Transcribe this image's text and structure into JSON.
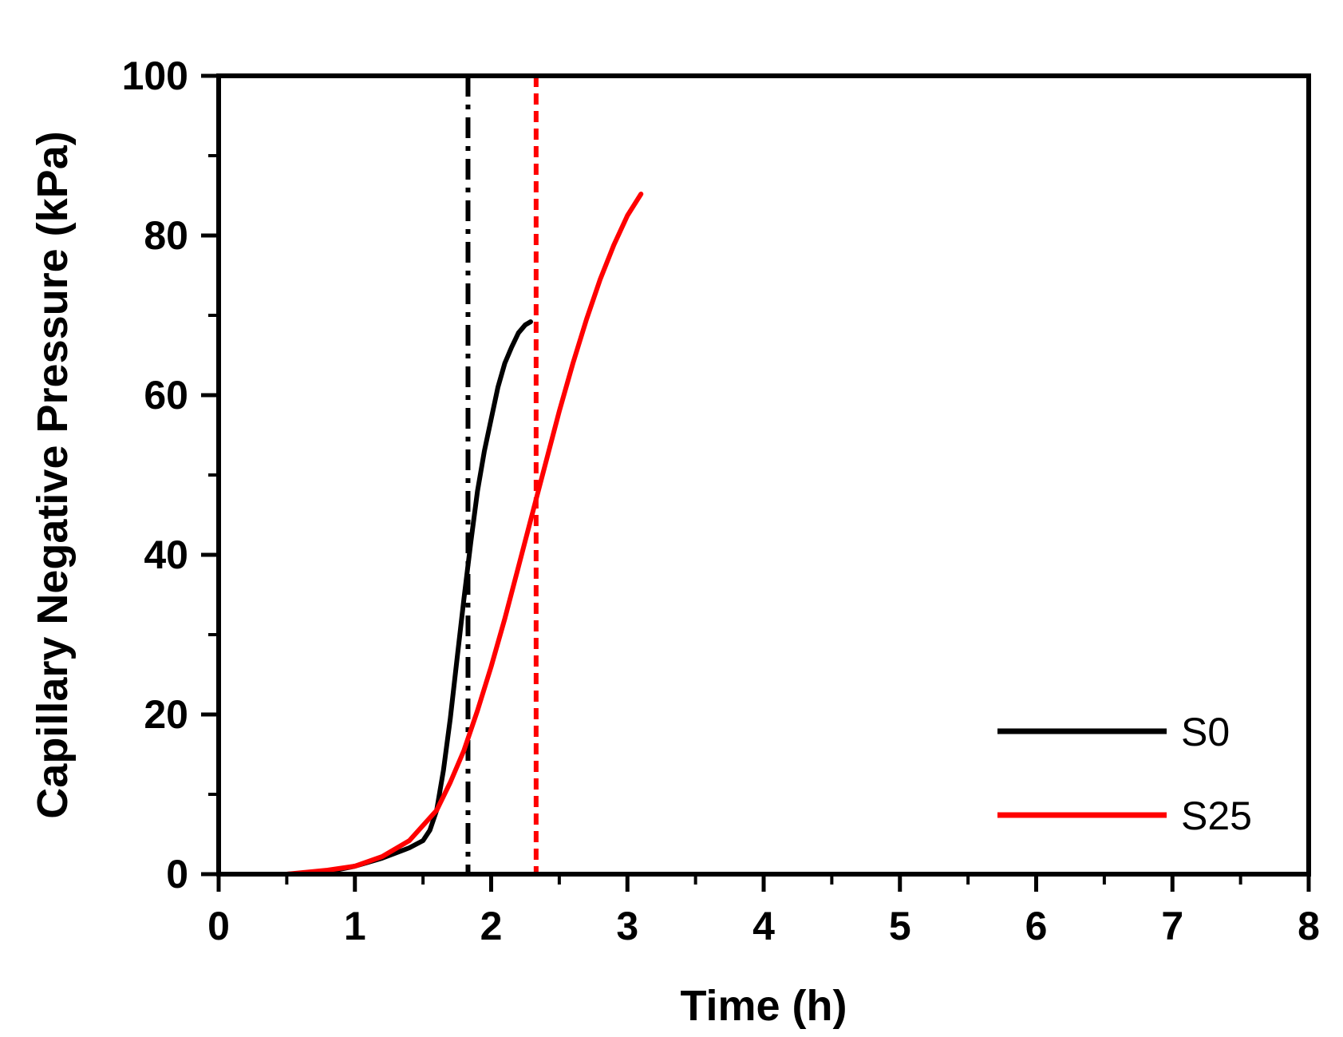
{
  "chart_data": {
    "type": "line",
    "title": "",
    "xlabel": "Time (h)",
    "ylabel": "Capillary Negative Pressure (kPa)",
    "xlim": [
      0,
      8
    ],
    "ylim": [
      0,
      100
    ],
    "x_ticks": [
      0,
      1,
      2,
      3,
      4,
      5,
      6,
      7,
      8
    ],
    "y_ticks": [
      0,
      20,
      40,
      60,
      80,
      100
    ],
    "x_tick_labels": [
      "0",
      "1",
      "2",
      "3",
      "4",
      "5",
      "6",
      "7",
      "8"
    ],
    "y_tick_labels": [
      "0",
      "20",
      "40",
      "60",
      "80",
      "100"
    ],
    "grid": false,
    "legend_position": "bottom-right",
    "series": [
      {
        "name": "S0",
        "color": "#000000",
        "x": [
          0,
          0.5,
          0.8,
          1.0,
          1.2,
          1.4,
          1.5,
          1.55,
          1.6,
          1.65,
          1.7,
          1.75,
          1.8,
          1.85,
          1.9,
          1.95,
          2.0,
          2.05,
          2.1,
          2.15,
          2.2,
          2.25,
          2.29
        ],
        "y": [
          0,
          0,
          0.3,
          1.0,
          2.0,
          3.3,
          4.2,
          5.5,
          8.0,
          13.0,
          19.5,
          27.0,
          34.5,
          41.5,
          48.0,
          53.0,
          57.0,
          61.0,
          64.0,
          66.0,
          67.8,
          68.8,
          69.2
        ]
      },
      {
        "name": "S25",
        "color": "#ff0000",
        "x": [
          0,
          0.5,
          0.8,
          1.0,
          1.2,
          1.4,
          1.6,
          1.7,
          1.8,
          1.9,
          2.0,
          2.1,
          2.2,
          2.3,
          2.4,
          2.5,
          2.6,
          2.7,
          2.8,
          2.9,
          3.0,
          3.1
        ],
        "y": [
          0,
          0,
          0.5,
          1.0,
          2.2,
          4.2,
          8.0,
          11.5,
          15.5,
          20.5,
          26.0,
          32.0,
          38.5,
          45.0,
          51.5,
          58.0,
          64.0,
          69.5,
          74.5,
          78.8,
          82.5,
          85.2
        ]
      }
    ],
    "reference_lines": [
      {
        "x": 1.83,
        "color": "#000000",
        "style": "dash-dot"
      },
      {
        "x": 2.33,
        "color": "#ff0000",
        "style": "dashed"
      }
    ]
  }
}
